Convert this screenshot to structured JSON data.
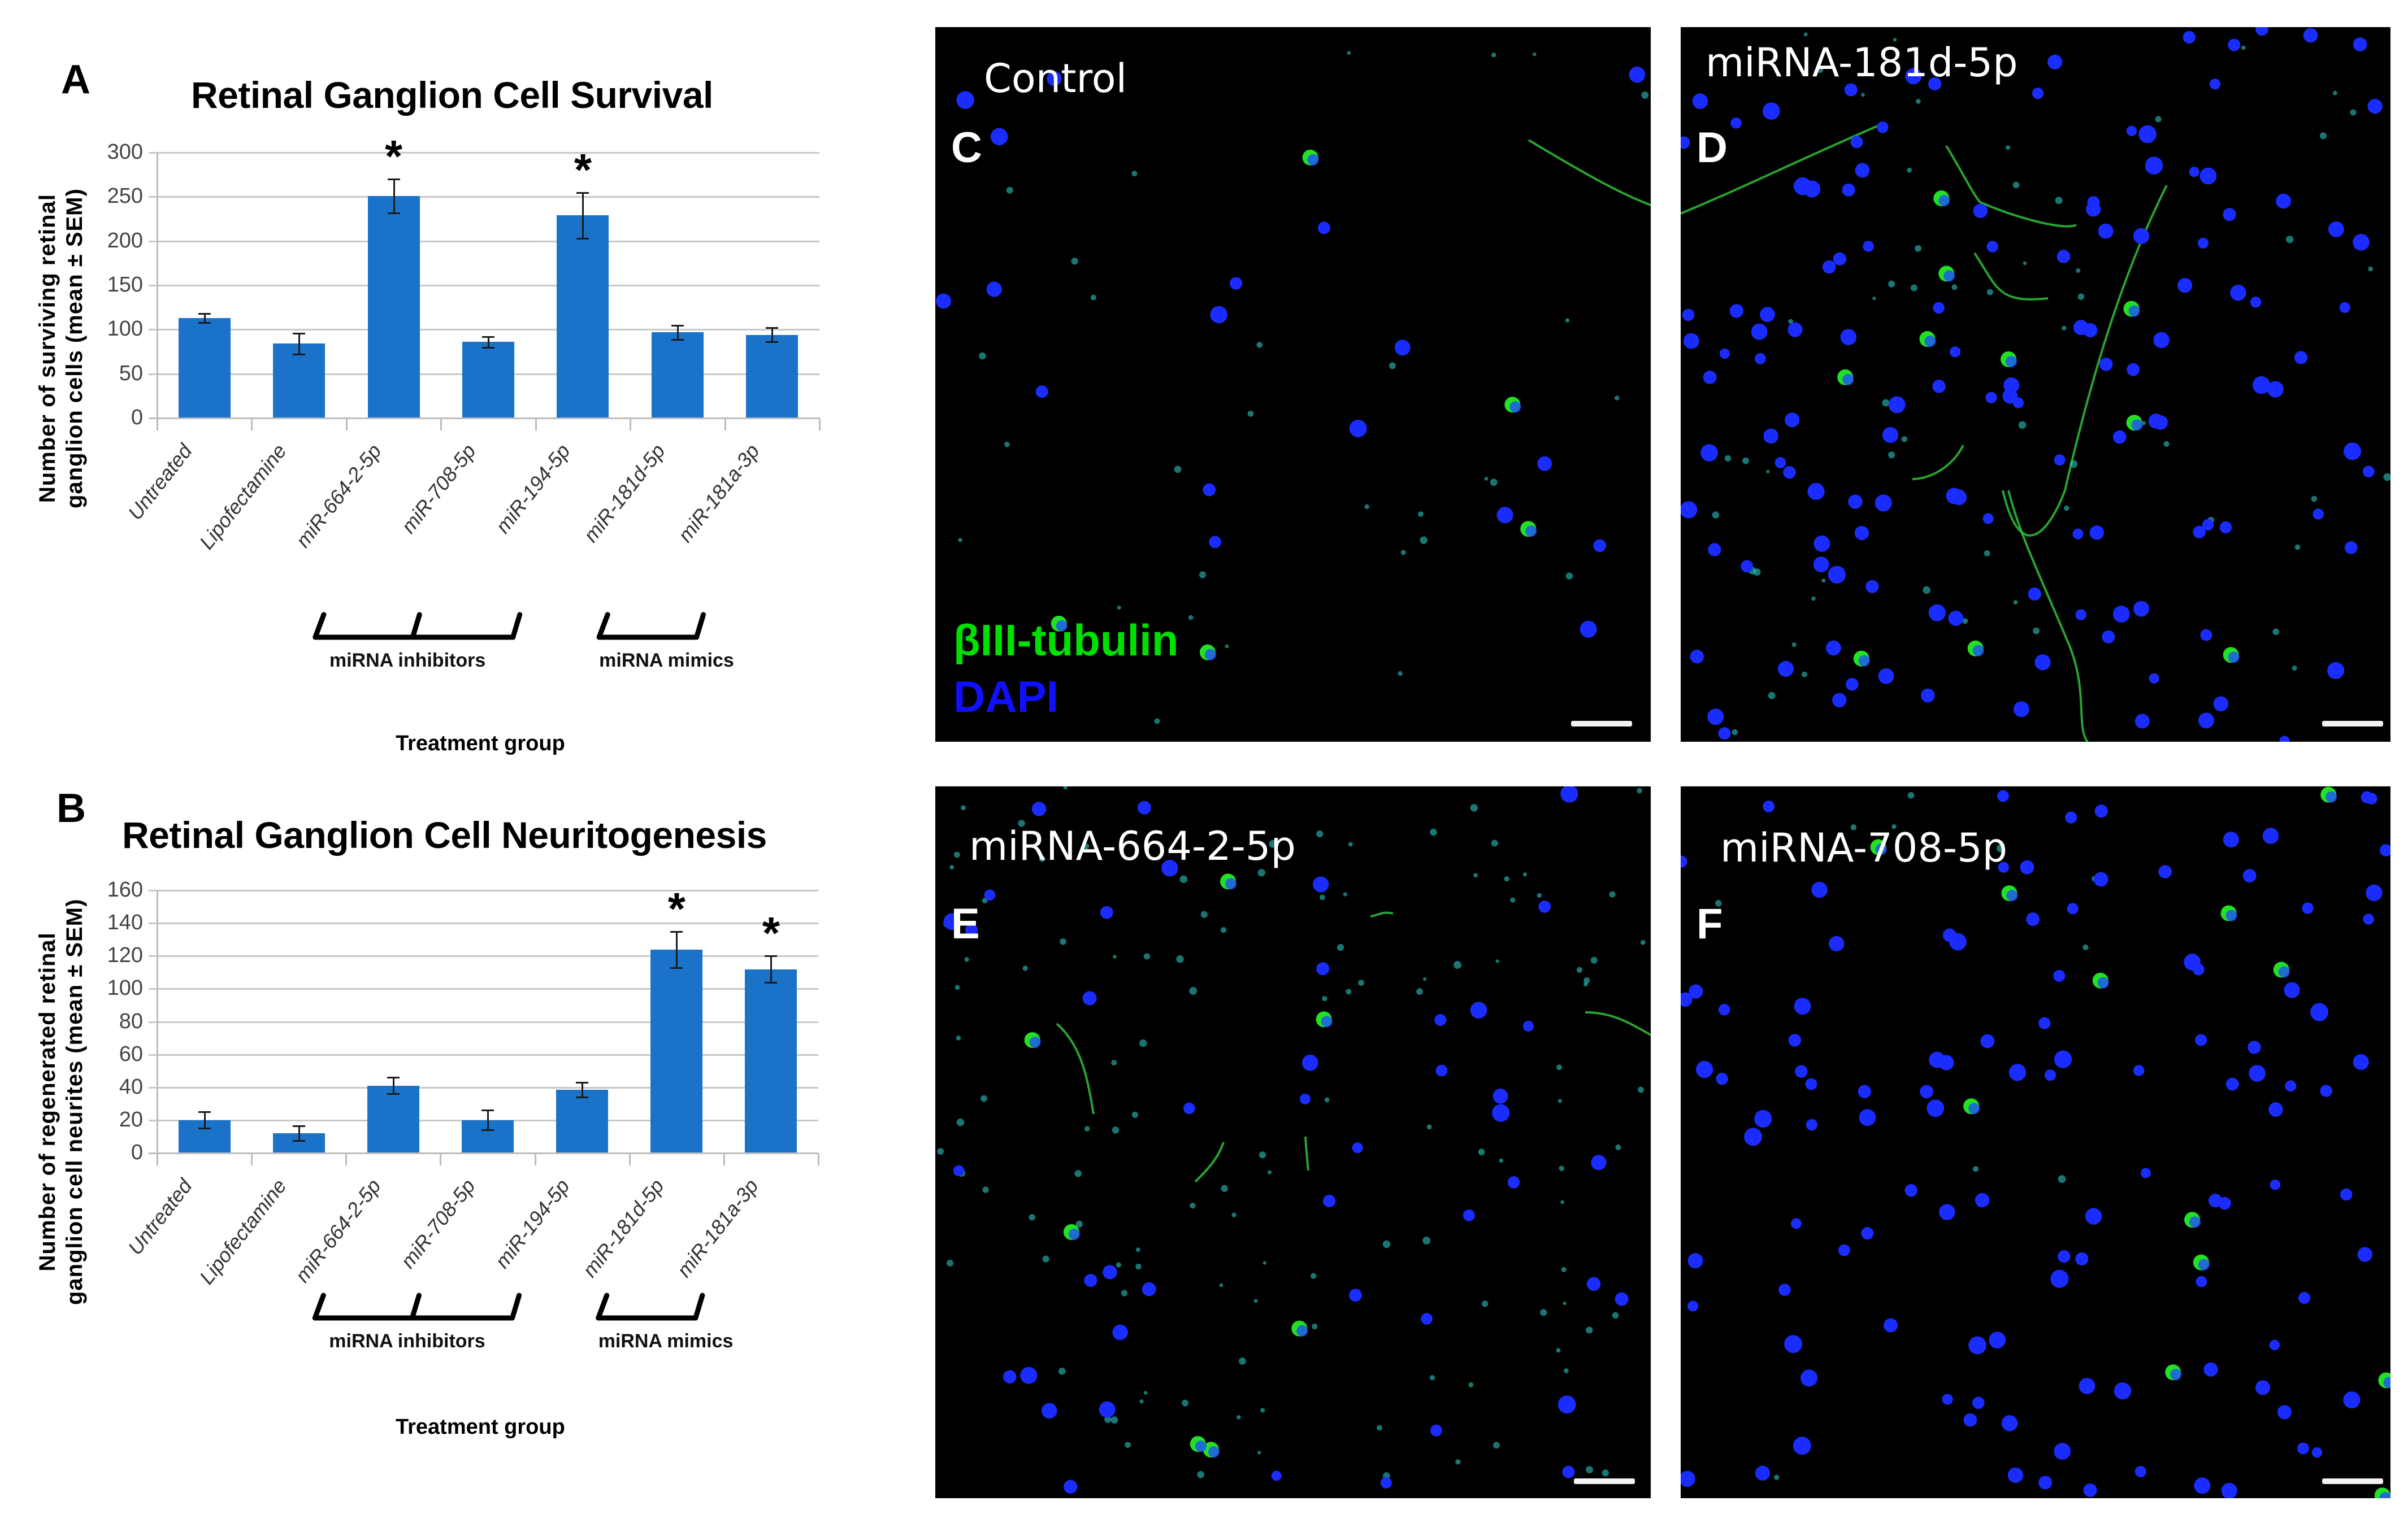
{
  "chart_data": [
    {
      "panel": "A",
      "type": "bar",
      "title": "Retinal Ganglion Cell Survival",
      "xlabel": "Treatment group",
      "ylabel": "Number of surviving retinal ganglion cells (mean ± SEM)",
      "ylabel_lines": [
        "Number of surviving retinal",
        "ganglion cells  (mean ± SEM)"
      ],
      "ylim": [
        0,
        300
      ],
      "yticks": [
        0,
        50,
        100,
        150,
        200,
        250,
        300
      ],
      "grid": true,
      "legend": "none",
      "categories": [
        "Untreated",
        "Lipofectamine",
        "miR-664-2-5p",
        "miR-708-5p",
        "miR-194-5p",
        "miR-181d-5p",
        "miR-181a-3p"
      ],
      "values": [
        113,
        84,
        251,
        86,
        229,
        97,
        94
      ],
      "error": [
        5,
        12,
        19,
        6,
        26,
        8,
        8
      ],
      "significant": [
        false,
        false,
        true,
        false,
        true,
        false,
        false
      ],
      "significance_marker": "*",
      "groups": [
        {
          "label": "miRNA inhibitors",
          "categories": [
            "miR-664-2-5p",
            "miR-708-5p",
            "miR-194-5p"
          ]
        },
        {
          "label": "miRNA mimics",
          "categories": [
            "miR-181d-5p",
            "miR-181a-3p"
          ]
        }
      ],
      "bar_color": "#1a73c9"
    },
    {
      "panel": "B",
      "type": "bar",
      "title": "Retinal Ganglion Cell Neuritogenesis",
      "xlabel": "Treatment group",
      "ylabel": "Number of regenerated retinal ganglion cell neurites (mean ± SEM)",
      "ylabel_lines": [
        "Number of regenerated retinal",
        "ganglion cell neurites  (mean ± SEM)"
      ],
      "ylim": [
        0,
        160
      ],
      "yticks": [
        0,
        20,
        40,
        60,
        80,
        100,
        120,
        140,
        160
      ],
      "grid": true,
      "legend": "none",
      "categories": [
        "Untreated",
        "Lipofectamine",
        "miR-664-2-5p",
        "miR-708-5p",
        "miR-194-5p",
        "miR-181d-5p",
        "miR-181a-3p"
      ],
      "values": [
        20,
        12,
        41,
        20,
        38.5,
        124,
        112
      ],
      "error": [
        5,
        4.5,
        5,
        6,
        4.5,
        11,
        8
      ],
      "significant": [
        false,
        false,
        false,
        false,
        false,
        true,
        true
      ],
      "significance_marker": "*",
      "groups": [
        {
          "label": "miRNA inhibitors",
          "categories": [
            "miR-664-2-5p",
            "miR-708-5p",
            "miR-194-5p"
          ]
        },
        {
          "label": "miRNA mimics",
          "categories": [
            "miR-181d-5p",
            "miR-181a-3p"
          ]
        }
      ],
      "bar_color": "#1a73c9"
    }
  ],
  "panels": {
    "A": {
      "letter": "A"
    },
    "B": {
      "letter": "B"
    },
    "C": {
      "letter": "C",
      "title": "Control"
    },
    "D": {
      "letter": "D",
      "title": "miRNA-181d-5p"
    },
    "E": {
      "letter": "E",
      "title": "miRNA-664-2-5p"
    },
    "F": {
      "letter": "F",
      "title": "miRNA-708-5p"
    }
  },
  "legend": {
    "stain1": {
      "label": "βIII-tubulin",
      "color": "#00e000"
    },
    "stain2": {
      "label": "DAPI",
      "color": "#1010ff"
    }
  },
  "colors": {
    "bar": "#1a73c9",
    "grid": "#c8c8c8",
    "micrograph_bg": "#000000",
    "nucleus": "#1a2cff",
    "tubulin": "#22e022",
    "debris": "#30c8c8"
  }
}
